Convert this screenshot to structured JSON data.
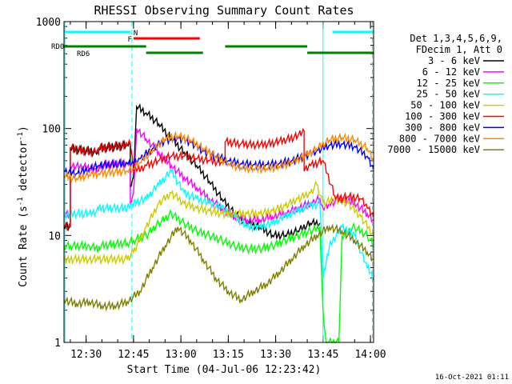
{
  "chart_data": {
    "type": "line",
    "title": "RHESSI Observing Summary Count Rates",
    "xlabel": "Start Time (04-Jul-06 12:23:42)",
    "ylabel_main": "Count Rate (s",
    "ylabel_sup1": "-1",
    "ylabel_mid": " detector",
    "ylabel_sup2": "-1",
    "ylabel_end": ")",
    "footer": "16-Oct-2021 01:11",
    "y_scale": "log",
    "ylim": [
      1,
      1000
    ],
    "xlim_minutes_since_1223": [
      0,
      98
    ],
    "x_ticks": [
      {
        "m": 7,
        "label": "12:30"
      },
      {
        "m": 22,
        "label": "12:45"
      },
      {
        "m": 37,
        "label": "13:00"
      },
      {
        "m": 52,
        "label": "13:15"
      },
      {
        "m": 67,
        "label": "13:30"
      },
      {
        "m": 82,
        "label": "13:45"
      },
      {
        "m": 97,
        "label": "14:00"
      }
    ],
    "y_ticks": [
      {
        "v": 1,
        "label": "1"
      },
      {
        "v": 10,
        "label": "10"
      },
      {
        "v": 100,
        "label": "100"
      },
      {
        "v": 1000,
        "label": "1000"
      }
    ],
    "legend_header": [
      "Det 1,3,4,5,6,9,",
      "FDecim 1, Att 0"
    ],
    "legend_placement": "right",
    "series": [
      {
        "name": "3 - 6 keV",
        "color": "#000000",
        "points": [
          [
            0,
            12
          ],
          [
            2,
            12
          ],
          [
            2,
            65
          ],
          [
            10,
            60
          ],
          [
            11,
            58
          ],
          [
            11,
            65
          ],
          [
            20,
            70
          ],
          [
            21,
            72
          ],
          [
            21,
            28
          ],
          [
            22,
            35
          ],
          [
            23,
            160
          ],
          [
            26,
            140
          ],
          [
            30,
            110
          ],
          [
            34,
            80
          ],
          [
            38,
            60
          ],
          [
            42,
            45
          ],
          [
            46,
            32
          ],
          [
            50,
            22
          ],
          [
            54,
            16
          ],
          [
            58,
            13
          ],
          [
            62,
            12
          ],
          [
            66,
            10
          ],
          [
            70,
            10
          ],
          [
            74,
            11
          ],
          [
            78,
            13
          ],
          [
            81,
            13
          ]
        ]
      },
      {
        "name": "6 - 12 keV",
        "color": "#ff00ff",
        "points": [
          [
            0,
            16
          ],
          [
            2,
            16
          ],
          [
            2,
            45
          ],
          [
            10,
            42
          ],
          [
            11,
            40
          ],
          [
            11,
            45
          ],
          [
            20,
            48
          ],
          [
            21,
            48
          ],
          [
            21,
            20
          ],
          [
            22,
            25
          ],
          [
            23,
            100
          ],
          [
            26,
            80
          ],
          [
            30,
            60
          ],
          [
            34,
            45
          ],
          [
            38,
            35
          ],
          [
            42,
            28
          ],
          [
            46,
            22
          ],
          [
            50,
            18
          ],
          [
            54,
            15
          ],
          [
            58,
            14
          ],
          [
            62,
            14
          ],
          [
            66,
            15
          ],
          [
            70,
            16
          ],
          [
            74,
            18
          ],
          [
            78,
            20
          ],
          [
            81,
            22
          ],
          [
            82,
            18
          ],
          [
            84,
            20
          ],
          [
            88,
            22
          ],
          [
            92,
            20
          ],
          [
            96,
            16
          ],
          [
            98,
            14
          ]
        ]
      },
      {
        "name": "12 - 25 keV",
        "color": "#00ff00",
        "points": [
          [
            0,
            8
          ],
          [
            2,
            8
          ],
          [
            2,
            8
          ],
          [
            8,
            8
          ],
          [
            11,
            7.5
          ],
          [
            11,
            8
          ],
          [
            20,
            8.5
          ],
          [
            22,
            9
          ],
          [
            26,
            10
          ],
          [
            30,
            13
          ],
          [
            34,
            16
          ],
          [
            38,
            13
          ],
          [
            42,
            11
          ],
          [
            46,
            10
          ],
          [
            50,
            9
          ],
          [
            54,
            8
          ],
          [
            58,
            7.5
          ],
          [
            62,
            7.5
          ],
          [
            66,
            8
          ],
          [
            70,
            9
          ],
          [
            74,
            10
          ],
          [
            78,
            11
          ],
          [
            81,
            12
          ],
          [
            82,
            2
          ],
          [
            83,
            1
          ],
          [
            87,
            1
          ],
          [
            88,
            10
          ],
          [
            92,
            12
          ],
          [
            96,
            10
          ],
          [
            98,
            8
          ]
        ]
      },
      {
        "name": "25 - 50 keV",
        "color": "#00ffff",
        "points": [
          [
            0,
            15
          ],
          [
            2,
            16
          ],
          [
            8,
            16
          ],
          [
            11,
            17
          ],
          [
            11,
            18
          ],
          [
            20,
            18
          ],
          [
            22,
            20
          ],
          [
            26,
            22
          ],
          [
            30,
            30
          ],
          [
            34,
            40
          ],
          [
            38,
            25
          ],
          [
            42,
            22
          ],
          [
            46,
            20
          ],
          [
            50,
            18
          ],
          [
            54,
            15
          ],
          [
            58,
            12
          ],
          [
            62,
            12
          ],
          [
            66,
            13
          ],
          [
            70,
            15
          ],
          [
            74,
            17
          ],
          [
            78,
            19
          ],
          [
            81,
            20
          ],
          [
            82,
            4
          ],
          [
            84,
            8
          ],
          [
            88,
            12
          ],
          [
            92,
            10
          ],
          [
            96,
            5
          ],
          [
            98,
            4
          ]
        ]
      },
      {
        "name": "50 - 100 keV",
        "color": "#cccc00",
        "points": [
          [
            0,
            6
          ],
          [
            1,
            6
          ],
          [
            2,
            6
          ],
          [
            8,
            6
          ],
          [
            11,
            6
          ],
          [
            20,
            6
          ],
          [
            22,
            7
          ],
          [
            26,
            12
          ],
          [
            30,
            20
          ],
          [
            34,
            25
          ],
          [
            38,
            20
          ],
          [
            42,
            18
          ],
          [
            46,
            17
          ],
          [
            50,
            16
          ],
          [
            54,
            16
          ],
          [
            58,
            16
          ],
          [
            62,
            16
          ],
          [
            66,
            17
          ],
          [
            70,
            19
          ],
          [
            74,
            22
          ],
          [
            78,
            25
          ],
          [
            80,
            30
          ],
          [
            82,
            20
          ],
          [
            86,
            22
          ],
          [
            90,
            20
          ],
          [
            94,
            15
          ],
          [
            98,
            10
          ]
        ]
      },
      {
        "name": "100 - 300 keV",
        "color": "#ff0000",
        "points": [
          [
            0,
            12
          ],
          [
            2,
            12
          ],
          [
            2,
            65
          ],
          [
            10,
            60
          ],
          [
            11,
            58
          ],
          [
            11,
            65
          ],
          [
            20,
            70
          ],
          [
            21,
            72
          ],
          [
            22,
            40
          ],
          [
            23,
            40
          ],
          [
            26,
            45
          ],
          [
            30,
            50
          ],
          [
            34,
            55
          ],
          [
            38,
            55
          ],
          [
            42,
            52
          ],
          [
            46,
            50
          ],
          [
            50,
            48
          ],
          [
            51,
            48
          ],
          [
            51,
            75
          ],
          [
            56,
            72
          ],
          [
            62,
            70
          ],
          [
            68,
            75
          ],
          [
            74,
            85
          ],
          [
            76,
            95
          ],
          [
            76,
            40
          ],
          [
            78,
            45
          ],
          [
            82,
            50
          ],
          [
            86,
            22
          ],
          [
            90,
            23
          ],
          [
            94,
            22
          ],
          [
            96,
            18
          ],
          [
            98,
            15
          ]
        ]
      },
      {
        "name": "300 - 800 keV",
        "color": "#0000ff",
        "points": [
          [
            0,
            40
          ],
          [
            4,
            38
          ],
          [
            8,
            42
          ],
          [
            11,
            45
          ],
          [
            20,
            47
          ],
          [
            22,
            48
          ],
          [
            24,
            52
          ],
          [
            28,
            65
          ],
          [
            32,
            78
          ],
          [
            36,
            82
          ],
          [
            40,
            75
          ],
          [
            44,
            62
          ],
          [
            48,
            55
          ],
          [
            52,
            50
          ],
          [
            56,
            47
          ],
          [
            60,
            46
          ],
          [
            64,
            46
          ],
          [
            68,
            47
          ],
          [
            72,
            50
          ],
          [
            76,
            55
          ],
          [
            80,
            62
          ],
          [
            84,
            70
          ],
          [
            88,
            72
          ],
          [
            92,
            68
          ],
          [
            96,
            55
          ],
          [
            98,
            42
          ]
        ]
      },
      {
        "name": "800 - 7000 keV",
        "color": "#ff8800",
        "points": [
          [
            0,
            36
          ],
          [
            4,
            34
          ],
          [
            8,
            37
          ],
          [
            11,
            38
          ],
          [
            20,
            40
          ],
          [
            22,
            42
          ],
          [
            24,
            48
          ],
          [
            28,
            62
          ],
          [
            32,
            80
          ],
          [
            36,
            85
          ],
          [
            40,
            78
          ],
          [
            44,
            65
          ],
          [
            48,
            55
          ],
          [
            52,
            47
          ],
          [
            56,
            43
          ],
          [
            60,
            42
          ],
          [
            64,
            42
          ],
          [
            68,
            44
          ],
          [
            72,
            48
          ],
          [
            76,
            55
          ],
          [
            80,
            65
          ],
          [
            84,
            78
          ],
          [
            88,
            82
          ],
          [
            92,
            78
          ],
          [
            96,
            65
          ],
          [
            98,
            50
          ]
        ]
      },
      {
        "name": "7000 - 15000 keV",
        "color": "#808000",
        "points": [
          [
            0,
            2.5
          ],
          [
            4,
            2.3
          ],
          [
            8,
            2.4
          ],
          [
            12,
            2.2
          ],
          [
            16,
            2.2
          ],
          [
            20,
            2.4
          ],
          [
            24,
            3.0
          ],
          [
            28,
            5.0
          ],
          [
            32,
            8.0
          ],
          [
            36,
            12
          ],
          [
            40,
            9
          ],
          [
            44,
            6
          ],
          [
            48,
            4
          ],
          [
            52,
            3
          ],
          [
            56,
            2.5
          ],
          [
            60,
            3
          ],
          [
            64,
            3.5
          ],
          [
            68,
            4.5
          ],
          [
            72,
            6
          ],
          [
            76,
            8
          ],
          [
            80,
            10
          ],
          [
            84,
            12
          ],
          [
            88,
            11
          ],
          [
            92,
            9
          ],
          [
            96,
            7
          ],
          [
            98,
            6
          ]
        ]
      }
    ],
    "state_bars": [
      {
        "label": "N",
        "color": "#00ffff",
        "row": 0,
        "segments": [
          [
            0,
            21
          ],
          [
            85,
            98
          ]
        ]
      },
      {
        "label": "F",
        "color": "#ff0000",
        "row": 1,
        "segments": [
          [
            22,
            43
          ]
        ]
      },
      {
        "label": "RD0",
        "color": "#008000",
        "row": 2,
        "segments": [
          [
            0,
            26
          ],
          [
            51,
            77
          ]
        ]
      },
      {
        "label": "RD6",
        "color": "#008000",
        "row": 3,
        "segments": [
          [
            26,
            44
          ],
          [
            77,
            98
          ]
        ]
      }
    ],
    "vlines": [
      {
        "m": 0.3,
        "style": "solid",
        "color": "#00ffff"
      },
      {
        "m": 21.5,
        "style": "dashed",
        "color": "#00ffff"
      },
      {
        "m": 82,
        "style": "solid",
        "color": "#00ffff"
      },
      {
        "m": 97.6,
        "style": "dashed",
        "color": "#00ffff"
      }
    ]
  }
}
